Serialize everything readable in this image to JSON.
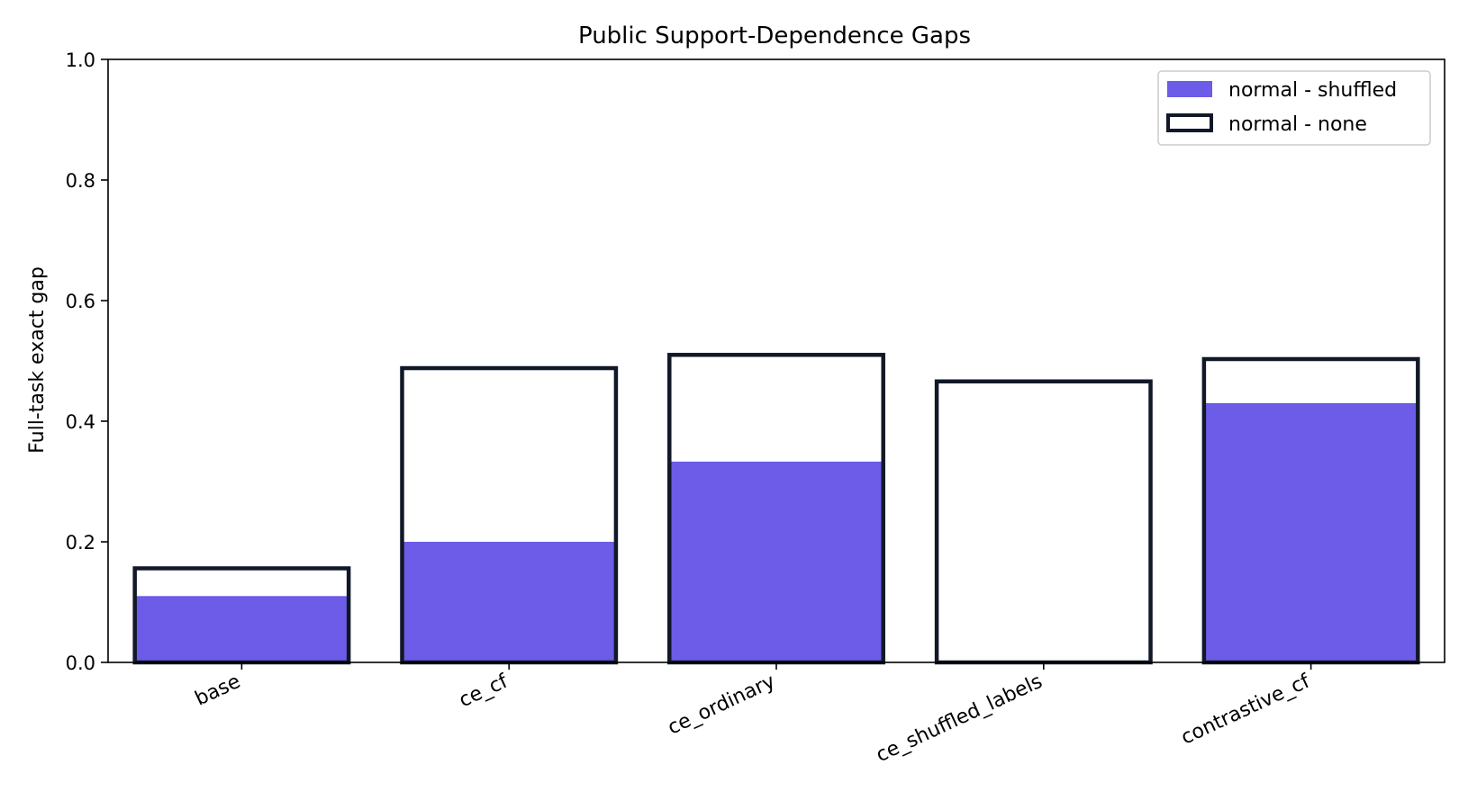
{
  "chart_data": {
    "type": "bar",
    "title": "Public Support-Dependence Gaps",
    "xlabel": "",
    "ylabel": "Full-task exact gap",
    "ylim": [
      0,
      1.0
    ],
    "yticks": [
      "0.0",
      "0.2",
      "0.4",
      "0.6",
      "0.8",
      "1.0"
    ],
    "categories": [
      "base",
      "ce_cf",
      "ce_ordinary",
      "ce_shuffled_labels",
      "contrastive_cf"
    ],
    "series": [
      {
        "name": "normal - shuffled",
        "style": "filled",
        "color": "#6c5ce7",
        "values": [
          0.11,
          0.2,
          0.333,
          0.0,
          0.43
        ]
      },
      {
        "name": "normal - none",
        "style": "outline",
        "color": "#111827",
        "values": [
          0.156,
          0.488,
          0.51,
          0.466,
          0.503
        ]
      }
    ],
    "legend_position": "top-right",
    "grid": false
  }
}
